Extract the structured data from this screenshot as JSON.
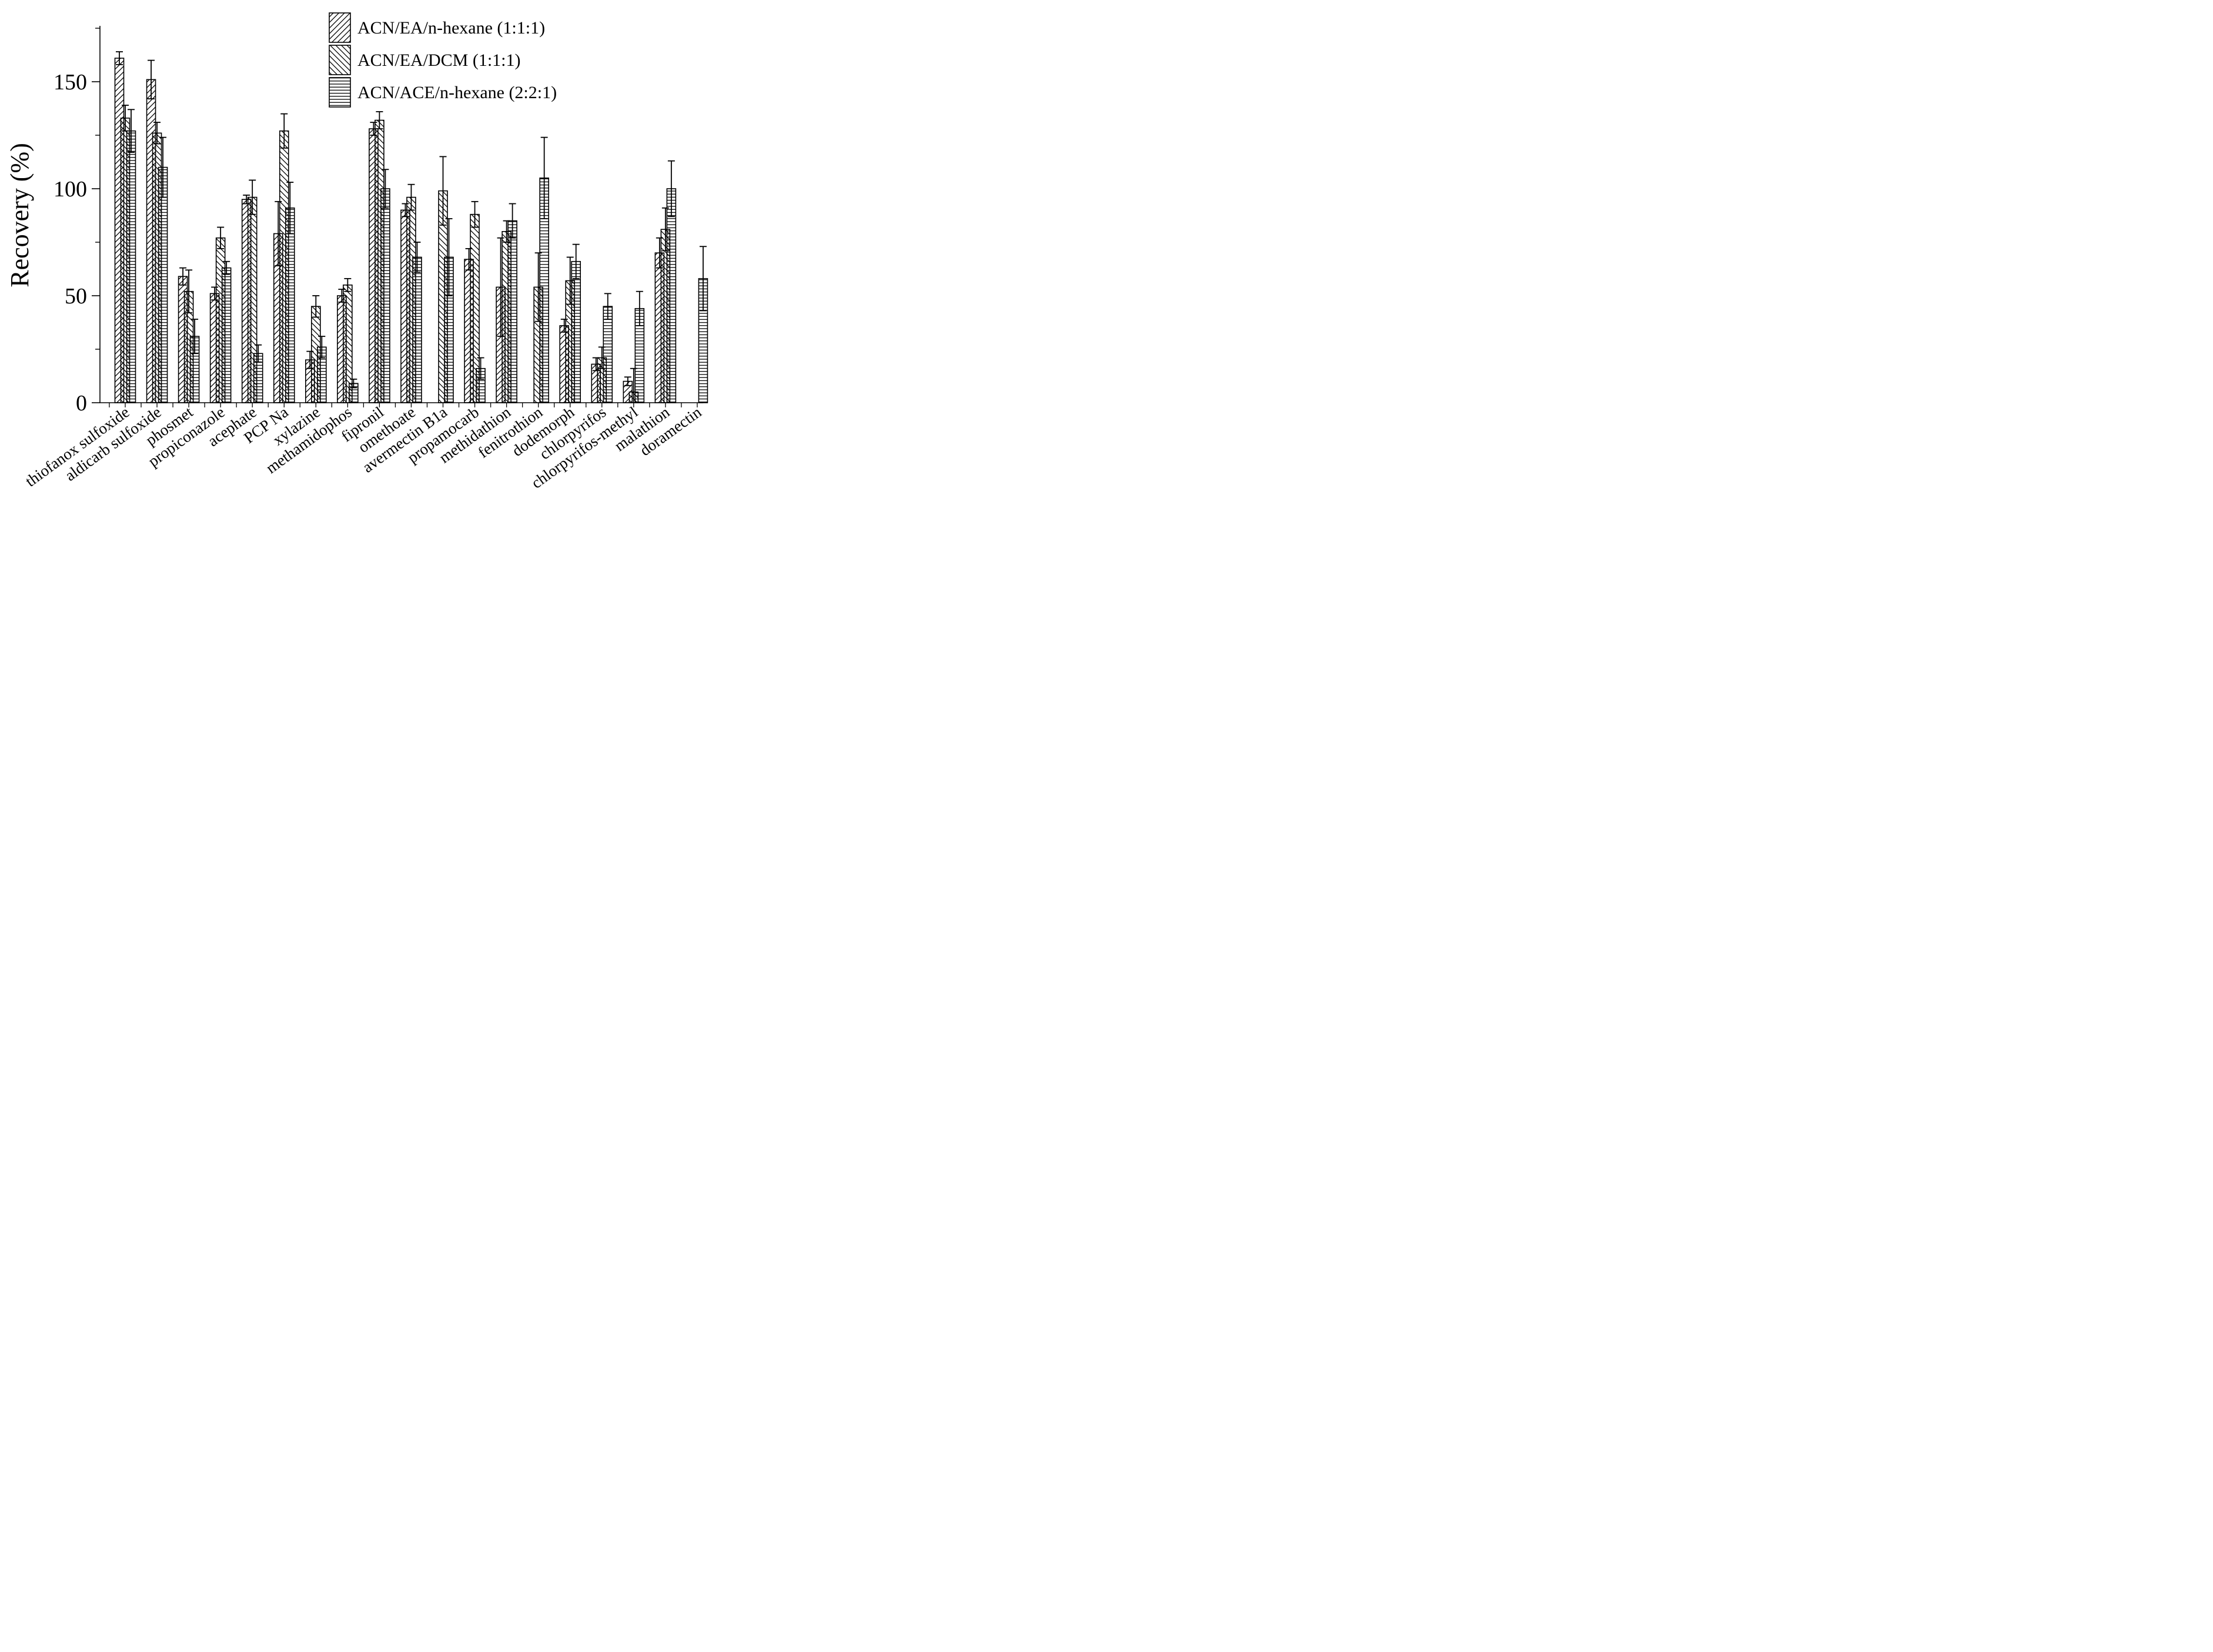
{
  "figure": {
    "background": "#ffffff",
    "ink": "#000000"
  },
  "chart_data": {
    "type": "bar",
    "title": "",
    "xlabel": "",
    "ylabel": "Recovery (%)",
    "ylim": [
      0,
      175
    ],
    "yticks_major": [
      0,
      50,
      100,
      150
    ],
    "yticks_minor": [
      25,
      75,
      125,
      175
    ],
    "grid": false,
    "legend_position": "top-center",
    "error_bars": "symmetric, black caps",
    "categories": [
      "thiofanox sulfoxide",
      "aldicarb sulfoxide",
      "phosmet",
      "propiconazole",
      "acephate",
      "PCP Na",
      "xylazine",
      "methamidophos",
      "fipronil",
      "omethoate",
      "avermectin B1a",
      "propamocarb",
      "methidathion",
      "fenitrothion",
      "dodemorph",
      "chlorpyrifos",
      "chlorpyrifos-methyl",
      "malathion",
      "doramectin"
    ],
    "series": [
      {
        "name": "ACN/EA/n-hexane (1:1:1)",
        "hatch": "diagonal-forward",
        "values": [
          161,
          151,
          59,
          51,
          95,
          79,
          20,
          50,
          128,
          90,
          null,
          67,
          54,
          null,
          36,
          18,
          10,
          70,
          null
        ],
        "errors": [
          3,
          9,
          4,
          3,
          2,
          15,
          4,
          3,
          3,
          3,
          null,
          5,
          23,
          null,
          3,
          3,
          2,
          7,
          null
        ]
      },
      {
        "name": "ACN/EA/DCM (1:1:1)",
        "hatch": "diagonal-backward",
        "values": [
          133,
          126,
          52,
          77,
          96,
          127,
          45,
          55,
          132,
          96,
          99,
          88,
          80,
          54,
          57,
          21,
          5,
          81,
          null
        ],
        "errors": [
          6,
          5,
          10,
          5,
          8,
          8,
          5,
          3,
          4,
          6,
          16,
          6,
          5,
          16,
          11,
          5,
          11,
          10,
          null
        ]
      },
      {
        "name": "ACN/ACE/n-hexane (2:2:1)",
        "hatch": "horizontal",
        "values": [
          127,
          110,
          31,
          63,
          23,
          91,
          26,
          9,
          100,
          68,
          68,
          16,
          85,
          105,
          66,
          45,
          44,
          100,
          58
        ],
        "errors": [
          10,
          14,
          8,
          3,
          4,
          12,
          5,
          2,
          9,
          7,
          18,
          5,
          8,
          19,
          8,
          6,
          8,
          13,
          15
        ]
      }
    ]
  }
}
